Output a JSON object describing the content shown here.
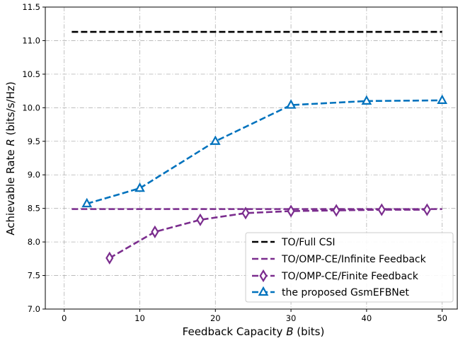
{
  "chart_data": {
    "type": "line",
    "xlabel_prefix": "Feedback Capacity ",
    "xlabel_symbol": "B",
    "xlabel_suffix": " (bits)",
    "ylabel_prefix": "Achievable Rate ",
    "ylabel_symbol": "R",
    "ylabel_suffix": " (bits/s/Hz)",
    "xlim": [
      -2.5,
      52
    ],
    "ylim": [
      7.0,
      11.5
    ],
    "xticks": [
      0,
      10,
      20,
      30,
      40,
      50
    ],
    "yticks": [
      7.0,
      7.5,
      8.0,
      8.5,
      9.0,
      9.5,
      10.0,
      10.5,
      11.0,
      11.5
    ],
    "ytick_labels": [
      "7.0",
      "7.5",
      "8.0",
      "8.5",
      "9.0",
      "9.5",
      "10.0",
      "10.5",
      "11.0",
      "11.5"
    ],
    "grid": true,
    "legend_position": "bottom-right",
    "series": [
      {
        "name": "TO/Full CSI",
        "color": "#000000",
        "marker": "none",
        "x": [
          1,
          50
        ],
        "y": [
          11.13,
          11.13
        ]
      },
      {
        "name": "TO/OMP-CE/Infinite Feedback",
        "color": "#7b2d8e",
        "marker": "none",
        "x": [
          1,
          50
        ],
        "y": [
          8.49,
          8.49
        ]
      },
      {
        "name": "TO/OMP-CE/Finite Feedback",
        "color": "#7b2d8e",
        "marker": "diamond",
        "x": [
          6,
          12,
          18,
          24,
          30,
          36,
          42,
          48
        ],
        "y": [
          7.76,
          8.15,
          8.33,
          8.43,
          8.46,
          8.47,
          8.48,
          8.48
        ]
      },
      {
        "name": "the proposed GsmEFBNet",
        "color": "#0072bd",
        "marker": "triangle",
        "x": [
          3,
          10,
          20,
          30,
          40,
          50
        ],
        "y": [
          8.57,
          8.8,
          9.5,
          10.04,
          10.1,
          10.11
        ]
      }
    ]
  }
}
